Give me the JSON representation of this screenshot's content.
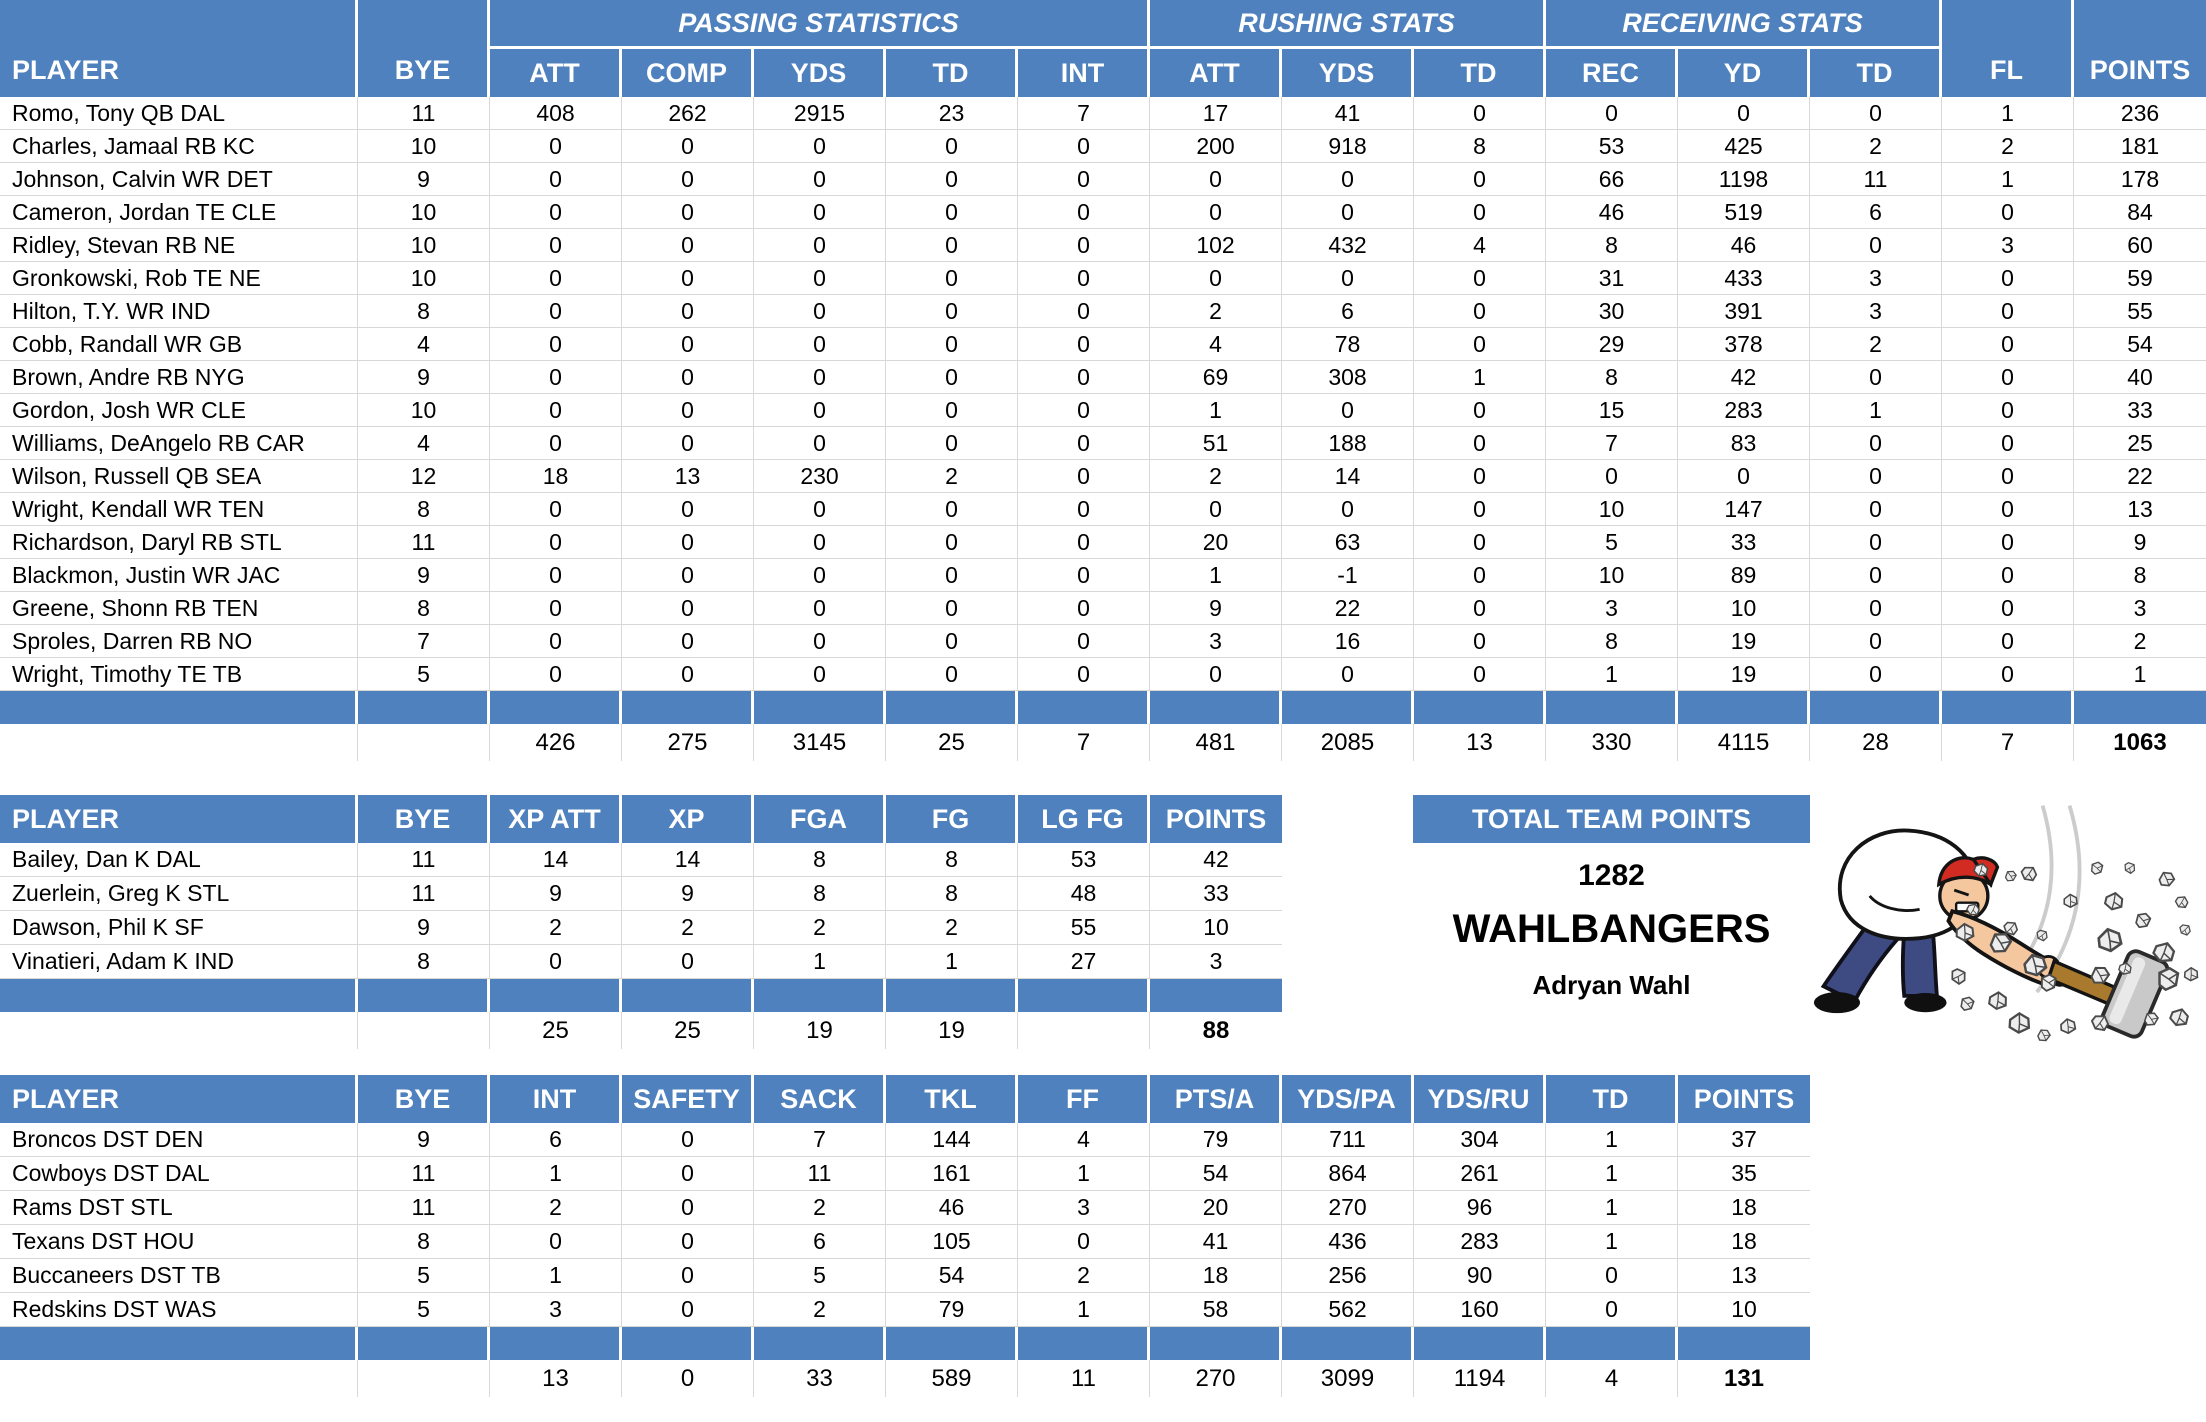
{
  "colors": {
    "header_blue": "#4E81BD",
    "gridline": "#D8D8D8",
    "text": "#000000"
  },
  "offense": {
    "header_groups": [
      {
        "label": "PLAYER",
        "span": 1,
        "rowspan": 2,
        "align": "left"
      },
      {
        "label": "BYE",
        "span": 1,
        "rowspan": 2
      },
      {
        "label": "PASSING STATISTICS",
        "span": 5
      },
      {
        "label": "RUSHING STATS",
        "span": 3
      },
      {
        "label": "RECEIVING STATS",
        "span": 3
      },
      {
        "label": "FL",
        "span": 1,
        "rowspan": 2
      },
      {
        "label": "POINTS",
        "span": 1,
        "rowspan": 2
      }
    ],
    "sub_headers": [
      "ATT",
      "COMP",
      "YDS",
      "TD",
      "INT",
      "ATT",
      "YDS",
      "TD",
      "REC",
      "YD",
      "TD"
    ],
    "columns": [
      "PLAYER",
      "BYE",
      "ATT",
      "COMP",
      "YDS",
      "TD",
      "INT",
      "ATT",
      "YDS",
      "TD",
      "REC",
      "YD",
      "TD",
      "FL",
      "POINTS"
    ],
    "rows": [
      [
        "Romo, Tony QB DAL",
        "11",
        "408",
        "262",
        "2915",
        "23",
        "7",
        "17",
        "41",
        "0",
        "0",
        "0",
        "0",
        "1",
        "236"
      ],
      [
        "Charles, Jamaal RB KC",
        "10",
        "0",
        "0",
        "0",
        "0",
        "0",
        "200",
        "918",
        "8",
        "53",
        "425",
        "2",
        "2",
        "181"
      ],
      [
        "Johnson, Calvin WR DET",
        "9",
        "0",
        "0",
        "0",
        "0",
        "0",
        "0",
        "0",
        "0",
        "66",
        "1198",
        "11",
        "1",
        "178"
      ],
      [
        "Cameron, Jordan TE CLE",
        "10",
        "0",
        "0",
        "0",
        "0",
        "0",
        "0",
        "0",
        "0",
        "46",
        "519",
        "6",
        "0",
        "84"
      ],
      [
        "Ridley, Stevan RB NE",
        "10",
        "0",
        "0",
        "0",
        "0",
        "0",
        "102",
        "432",
        "4",
        "8",
        "46",
        "0",
        "3",
        "60"
      ],
      [
        "Gronkowski, Rob TE NE",
        "10",
        "0",
        "0",
        "0",
        "0",
        "0",
        "0",
        "0",
        "0",
        "31",
        "433",
        "3",
        "0",
        "59"
      ],
      [
        "Hilton, T.Y. WR IND",
        "8",
        "0",
        "0",
        "0",
        "0",
        "0",
        "2",
        "6",
        "0",
        "30",
        "391",
        "3",
        "0",
        "55"
      ],
      [
        "Cobb, Randall WR GB",
        "4",
        "0",
        "0",
        "0",
        "0",
        "0",
        "4",
        "78",
        "0",
        "29",
        "378",
        "2",
        "0",
        "54"
      ],
      [
        "Brown, Andre RB NYG",
        "9",
        "0",
        "0",
        "0",
        "0",
        "0",
        "69",
        "308",
        "1",
        "8",
        "42",
        "0",
        "0",
        "40"
      ],
      [
        "Gordon, Josh WR CLE",
        "10",
        "0",
        "0",
        "0",
        "0",
        "0",
        "1",
        "0",
        "0",
        "15",
        "283",
        "1",
        "0",
        "33"
      ],
      [
        "Williams, DeAngelo RB CAR",
        "4",
        "0",
        "0",
        "0",
        "0",
        "0",
        "51",
        "188",
        "0",
        "7",
        "83",
        "0",
        "0",
        "25"
      ],
      [
        "Wilson, Russell QB SEA",
        "12",
        "18",
        "13",
        "230",
        "2",
        "0",
        "2",
        "14",
        "0",
        "0",
        "0",
        "0",
        "0",
        "22"
      ],
      [
        "Wright, Kendall WR TEN",
        "8",
        "0",
        "0",
        "0",
        "0",
        "0",
        "0",
        "0",
        "0",
        "10",
        "147",
        "0",
        "0",
        "13"
      ],
      [
        "Richardson, Daryl RB STL",
        "11",
        "0",
        "0",
        "0",
        "0",
        "0",
        "20",
        "63",
        "0",
        "5",
        "33",
        "0",
        "0",
        "9"
      ],
      [
        "Blackmon, Justin WR JAC",
        "9",
        "0",
        "0",
        "0",
        "0",
        "0",
        "1",
        "-1",
        "0",
        "10",
        "89",
        "0",
        "0",
        "8"
      ],
      [
        "Greene, Shonn RB TEN",
        "8",
        "0",
        "0",
        "0",
        "0",
        "0",
        "9",
        "22",
        "0",
        "3",
        "10",
        "0",
        "0",
        "3"
      ],
      [
        "Sproles, Darren RB NO",
        "7",
        "0",
        "0",
        "0",
        "0",
        "0",
        "3",
        "16",
        "0",
        "8",
        "19",
        "0",
        "0",
        "2"
      ],
      [
        "Wright, Timothy TE TB",
        "5",
        "0",
        "0",
        "0",
        "0",
        "0",
        "0",
        "0",
        "0",
        "1",
        "19",
        "0",
        "0",
        "1"
      ]
    ],
    "totals": [
      "",
      "",
      "426",
      "275",
      "3145",
      "25",
      "7",
      "481",
      "2085",
      "13",
      "330",
      "4115",
      "28",
      "7",
      "1063"
    ],
    "bold_total_index": 14
  },
  "kickers": {
    "columns": [
      "PLAYER",
      "BYE",
      "XP ATT",
      "XP",
      "FGA",
      "FG",
      "LG FG",
      "POINTS"
    ],
    "rows": [
      [
        "Bailey, Dan K DAL",
        "11",
        "14",
        "14",
        "8",
        "8",
        "53",
        "42"
      ],
      [
        "Zuerlein, Greg K STL",
        "11",
        "9",
        "9",
        "8",
        "8",
        "48",
        "33"
      ],
      [
        "Dawson, Phil K SF",
        "9",
        "2",
        "2",
        "2",
        "2",
        "55",
        "10"
      ],
      [
        "Vinatieri, Adam K IND",
        "8",
        "0",
        "0",
        "1",
        "1",
        "27",
        "3"
      ]
    ],
    "totals": [
      "",
      "",
      "25",
      "25",
      "19",
      "19",
      "",
      "88"
    ],
    "bold_total_index": 7
  },
  "defense": {
    "columns": [
      "PLAYER",
      "BYE",
      "INT",
      "SAFETY",
      "SACK",
      "TKL",
      "FF",
      "PTS/A",
      "YDS/PA",
      "YDS/RU",
      "TD",
      "POINTS"
    ],
    "rows": [
      [
        "Broncos DST DEN",
        "9",
        "6",
        "0",
        "7",
        "144",
        "4",
        "79",
        "711",
        "304",
        "1",
        "37"
      ],
      [
        "Cowboys DST DAL",
        "11",
        "1",
        "0",
        "11",
        "161",
        "1",
        "54",
        "864",
        "261",
        "1",
        "35"
      ],
      [
        "Rams DST STL",
        "11",
        "2",
        "0",
        "2",
        "46",
        "3",
        "20",
        "270",
        "96",
        "1",
        "18"
      ],
      [
        "Texans DST HOU",
        "8",
        "0",
        "0",
        "6",
        "105",
        "0",
        "41",
        "436",
        "283",
        "1",
        "18"
      ],
      [
        "Buccaneers DST TB",
        "5",
        "1",
        "0",
        "5",
        "54",
        "2",
        "18",
        "256",
        "90",
        "0",
        "13"
      ],
      [
        "Redskins DST WAS",
        "5",
        "3",
        "0",
        "2",
        "79",
        "1",
        "58",
        "562",
        "160",
        "0",
        "10"
      ]
    ],
    "totals": [
      "",
      "",
      "13",
      "0",
      "33",
      "589",
      "11",
      "270",
      "3099",
      "1194",
      "4",
      "131"
    ],
    "bold_total_index": 11
  },
  "team_summary": {
    "title": "TOTAL TEAM POINTS",
    "total_points": "1282",
    "team_name": "WAHLBANGERS",
    "owner": "Adryan Wahl"
  },
  "illustration": {
    "name": "man-smashing-rocks-with-sledgehammer"
  }
}
